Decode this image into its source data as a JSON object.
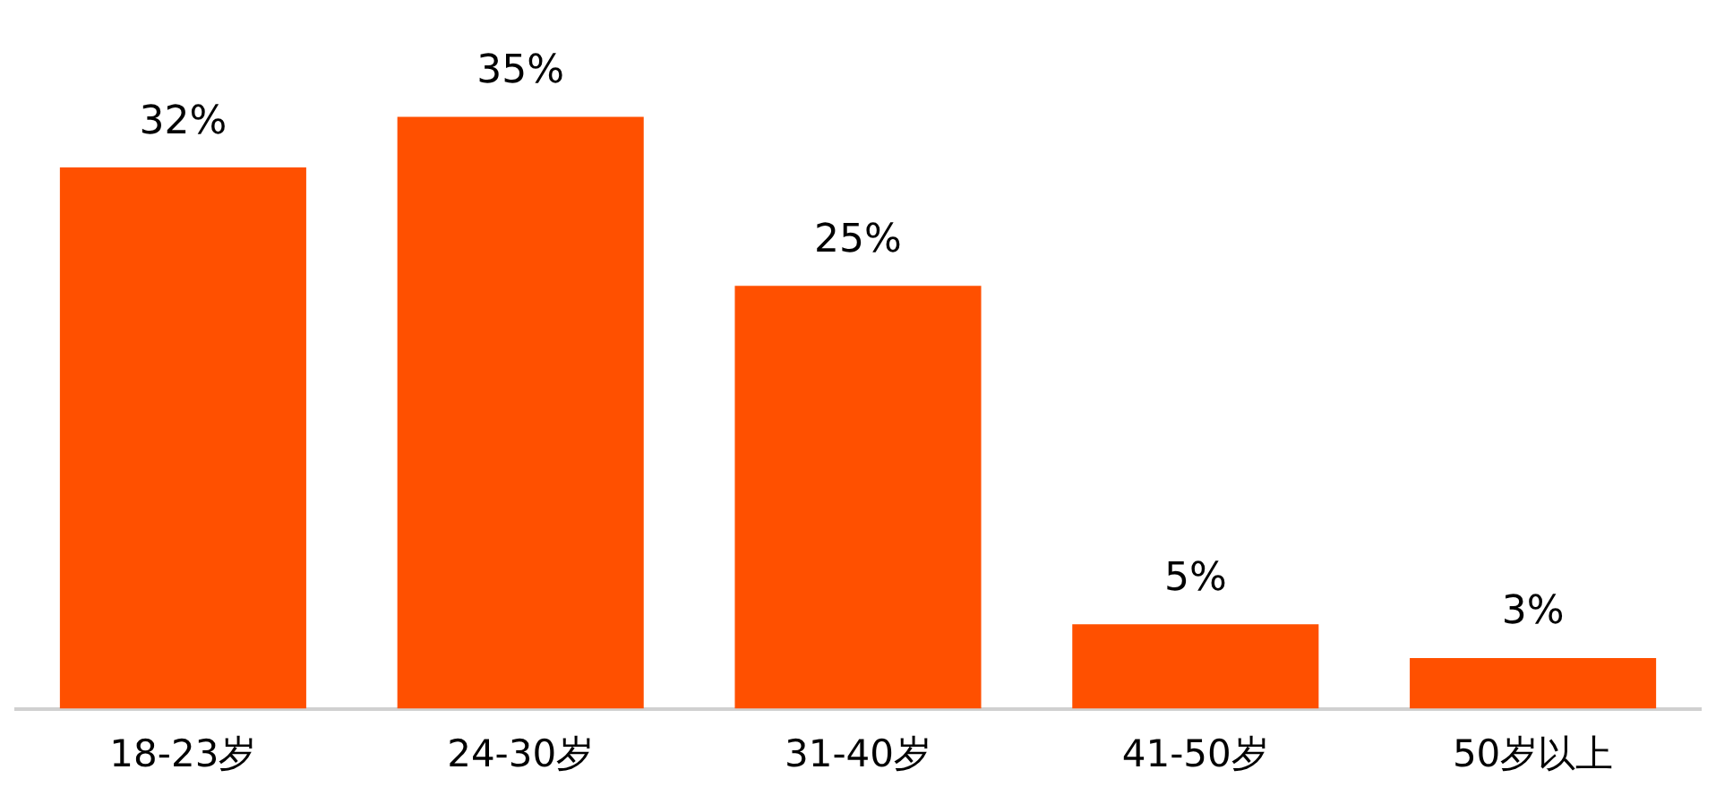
{
  "chart_data": {
    "type": "bar",
    "categories": [
      "18-23岁",
      "24-30岁",
      "31-40岁",
      "41-50岁",
      "50岁以上"
    ],
    "values": [
      32,
      35,
      25,
      5,
      3
    ],
    "value_labels": [
      "32%",
      "35%",
      "25%",
      "5%",
      "3%"
    ],
    "color": "#ff5000",
    "grid": false,
    "legend": false,
    "tick_labels": "x"
  }
}
